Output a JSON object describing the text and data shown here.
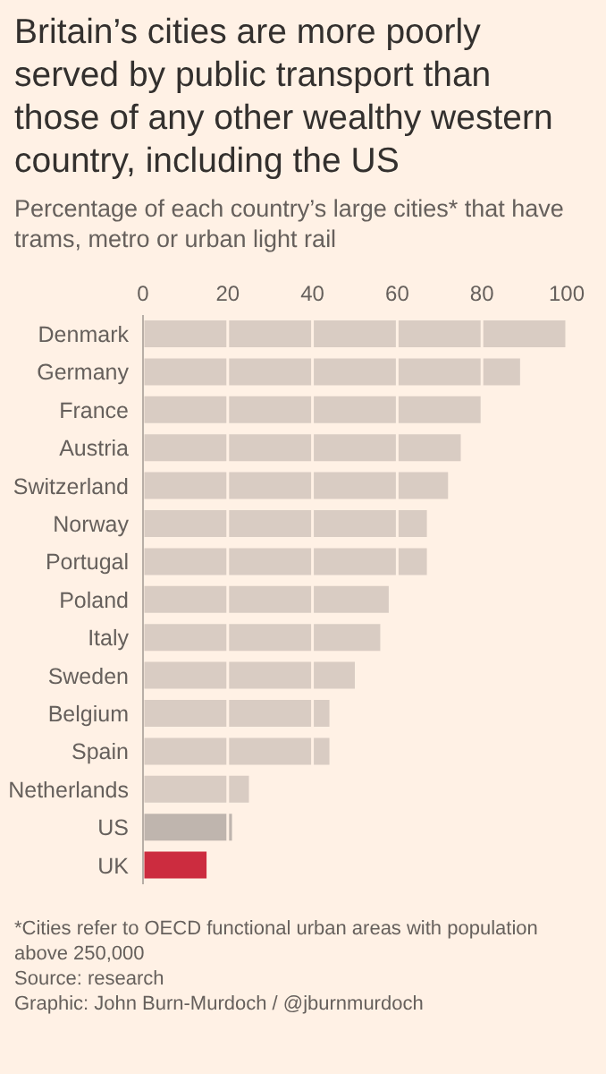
{
  "chart_data": {
    "type": "bar",
    "orientation": "horizontal",
    "title": "Britain’s cities are more poorly served by public transport than those of any other wealthy western country, including the US",
    "subtitle": "Percentage of each country’s large cities* that have trams, metro or urban light rail",
    "categories": [
      "Denmark",
      "Germany",
      "France",
      "Austria",
      "Switzerland",
      "Norway",
      "Portugal",
      "Poland",
      "Italy",
      "Sweden",
      "Belgium",
      "Spain",
      "Netherlands",
      "US",
      "UK"
    ],
    "values": [
      100,
      89,
      80,
      75,
      72,
      67,
      67,
      58,
      56,
      50,
      44,
      44,
      25,
      21,
      15
    ],
    "colors": [
      "#d9ccc3",
      "#d9ccc3",
      "#d9ccc3",
      "#d9ccc3",
      "#d9ccc3",
      "#d9ccc3",
      "#d9ccc3",
      "#d9ccc3",
      "#d9ccc3",
      "#d9ccc3",
      "#d9ccc3",
      "#d9ccc3",
      "#d9ccc3",
      "#bfb5ae",
      "#cc2c3f"
    ],
    "xlim": [
      0,
      100
    ],
    "xticks": [
      0,
      20,
      40,
      60,
      80,
      100
    ],
    "grid": "x",
    "annotations": [
      "*Cities refer to OECD functional urban areas with population above 250,000",
      "Source: research",
      "Graphic: John Burn-Murdoch / @jburnmurdoch"
    ]
  }
}
